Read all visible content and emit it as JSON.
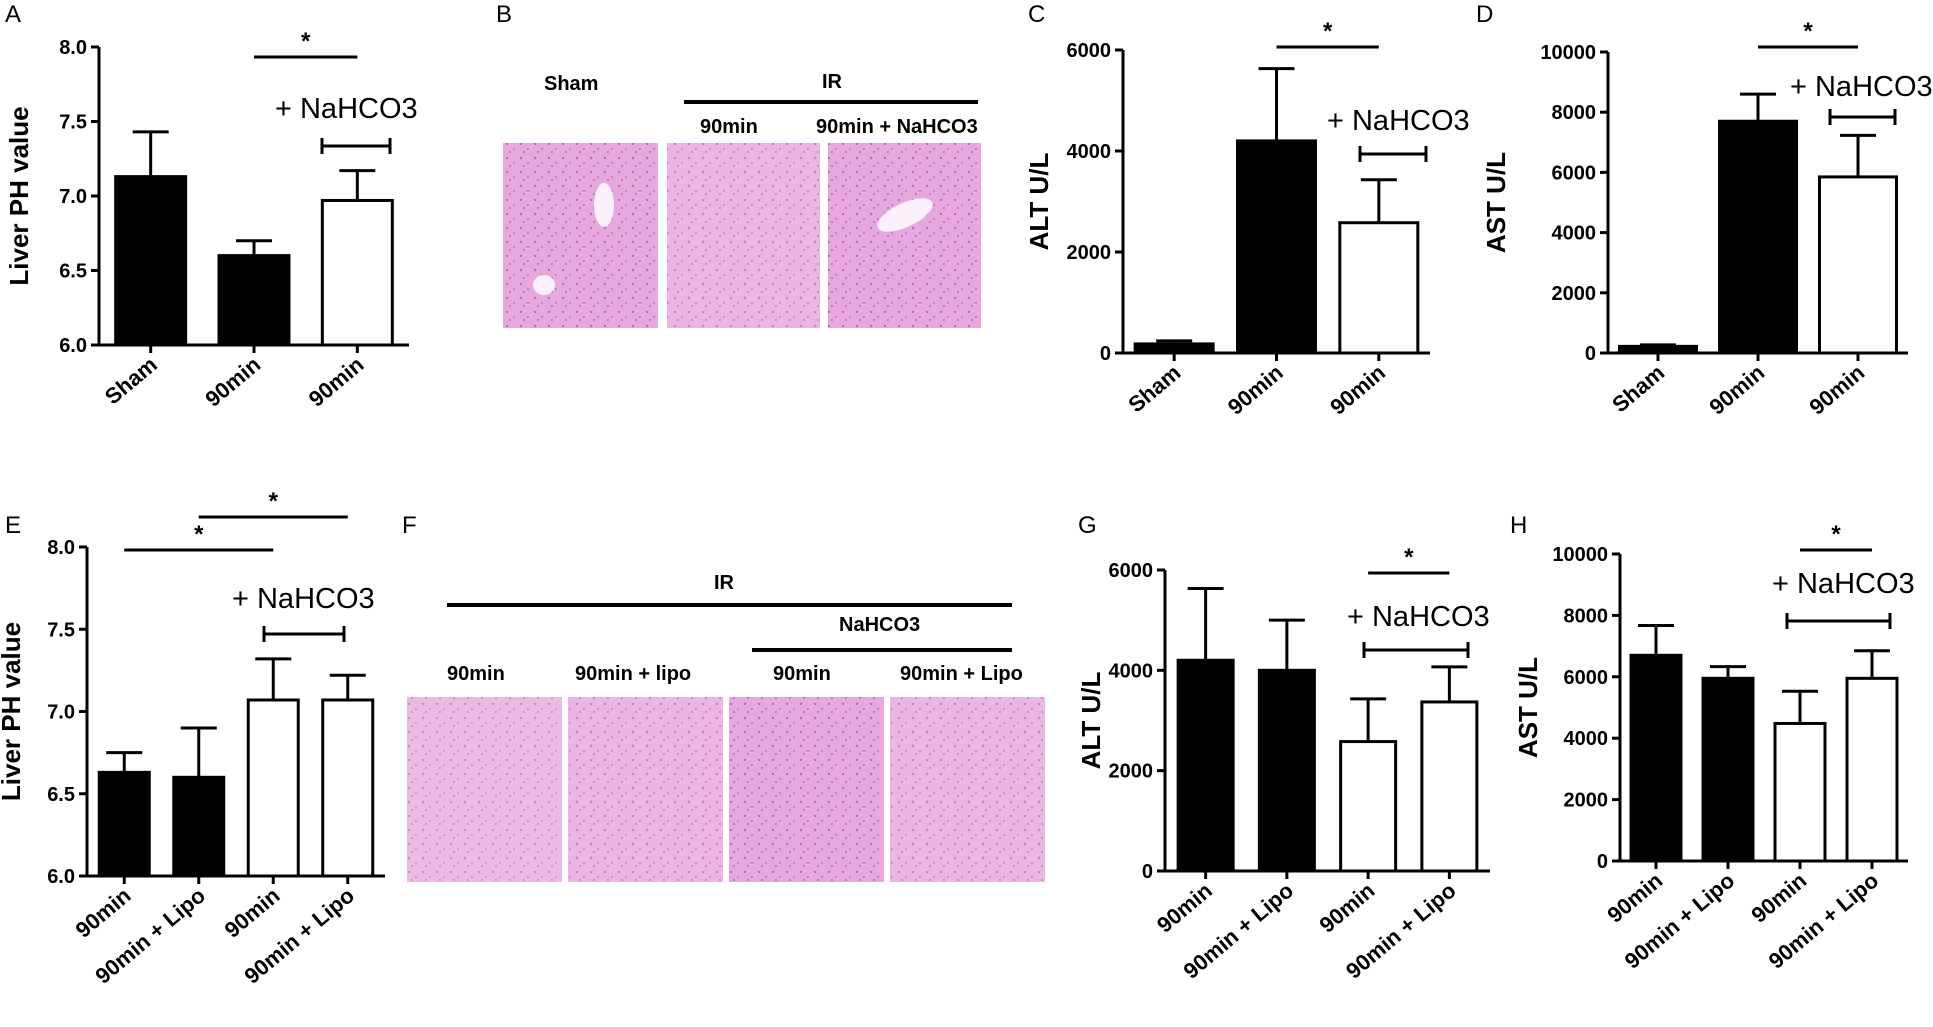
{
  "panel_letters": [
    "A",
    "B",
    "C",
    "D",
    "E",
    "F",
    "G",
    "H"
  ],
  "histology_B": {
    "sham": "Sham",
    "ir": "IR",
    "t90": "90min",
    "t90_nahco3": "90min + NaHCO3"
  },
  "histology_F": {
    "ir": "IR",
    "nahco3": "NaHCO3",
    "t90": "90min",
    "t90_lipo_lower": "90min + lipo",
    "t90_b": "90min",
    "t90_lipo": "90min + Lipo"
  },
  "colors": {
    "black_bar": "#000000",
    "white_bar": "#ffffff",
    "histology": "#e6a6de"
  },
  "chart_data": [
    {
      "id": "A",
      "type": "bar",
      "categories": [
        "Sham",
        "90min",
        "90min"
      ],
      "values": [
        7.13,
        6.6,
        6.97
      ],
      "errors": [
        0.3,
        0.1,
        0.2
      ],
      "fills": [
        "black",
        "black",
        "white"
      ],
      "ylabel": "Liver PH value",
      "ylim": [
        6.0,
        8.0
      ],
      "yticks": [
        "6.0",
        "6.5",
        "7.0",
        "7.5",
        "8.0"
      ],
      "annotation": "+ NaHCO3",
      "sig": [
        {
          "from": 1,
          "to": 2,
          "label": "*"
        }
      ]
    },
    {
      "id": "C",
      "type": "bar",
      "categories": [
        "Sham",
        "90min",
        "90min"
      ],
      "values": [
        180,
        4200,
        2580
      ],
      "errors": [
        60,
        1430,
        850
      ],
      "fills": [
        "black",
        "black",
        "white"
      ],
      "ylabel": "ALT U/L",
      "ylim": [
        0,
        6000
      ],
      "yticks": [
        "0",
        "2000",
        "4000",
        "6000"
      ],
      "annotation": "+ NaHCO3",
      "sig": [
        {
          "from": 1,
          "to": 2,
          "label": "*"
        }
      ]
    },
    {
      "id": "D",
      "type": "bar",
      "categories": [
        "Sham",
        "90min",
        "90min"
      ],
      "values": [
        220,
        7700,
        5850
      ],
      "errors": [
        50,
        900,
        1380
      ],
      "fills": [
        "black",
        "black",
        "white"
      ],
      "ylabel": "AST U/L",
      "ylim": [
        0,
        10000
      ],
      "yticks": [
        "0",
        "2000",
        "4000",
        "6000",
        "8000",
        "10000"
      ],
      "annotation": "+ NaHCO3",
      "sig": [
        {
          "from": 1,
          "to": 2,
          "label": "*"
        }
      ]
    },
    {
      "id": "E",
      "type": "bar",
      "categories": [
        "90min",
        "90min + Lipo",
        "90min",
        "90min + Lipo"
      ],
      "values": [
        6.63,
        6.6,
        7.07,
        7.07
      ],
      "errors": [
        0.12,
        0.3,
        0.25,
        0.15
      ],
      "fills": [
        "black",
        "black",
        "white",
        "white"
      ],
      "ylabel": "Liver PH value",
      "ylim": [
        6.0,
        8.0
      ],
      "yticks": [
        "6.0",
        "6.5",
        "7.0",
        "7.5",
        "8.0"
      ],
      "annotation": "+ NaHCO3",
      "sig": [
        {
          "from": 0,
          "to": 2,
          "label": "*"
        },
        {
          "from": 1,
          "to": 3,
          "label": "*"
        }
      ]
    },
    {
      "id": "G",
      "type": "bar",
      "categories": [
        "90min",
        "90min + Lipo",
        "90min",
        "90min + Lipo"
      ],
      "values": [
        4200,
        4000,
        2580,
        3370
      ],
      "errors": [
        1430,
        1000,
        850,
        700
      ],
      "fills": [
        "black",
        "black",
        "white",
        "white"
      ],
      "ylabel": "ALT U/L",
      "ylim": [
        0,
        6000
      ],
      "yticks": [
        "0",
        "2000",
        "4000",
        "6000"
      ],
      "annotation": "+ NaHCO3",
      "sig": [
        {
          "from": 2,
          "to": 3,
          "label": "*"
        }
      ]
    },
    {
      "id": "H",
      "type": "bar",
      "categories": [
        "90min",
        "90min + Lipo",
        "90min",
        "90min + Lipo"
      ],
      "values": [
        6700,
        5950,
        4480,
        5950
      ],
      "errors": [
        970,
        380,
        1050,
        900
      ],
      "fills": [
        "black",
        "black",
        "white",
        "white"
      ],
      "ylabel": "AST U/L",
      "ylim": [
        0,
        10000
      ],
      "yticks": [
        "0",
        "2000",
        "4000",
        "6000",
        "8000",
        "10000"
      ],
      "annotation": "+ NaHCO3",
      "sig": [
        {
          "from": 2,
          "to": 3,
          "label": "*"
        }
      ]
    }
  ]
}
